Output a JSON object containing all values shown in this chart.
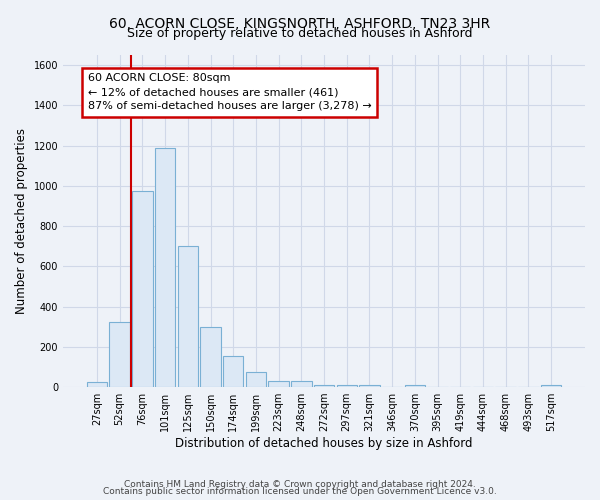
{
  "title_line1": "60, ACORN CLOSE, KINGSNORTH, ASHFORD, TN23 3HR",
  "title_line2": "Size of property relative to detached houses in Ashford",
  "xlabel": "Distribution of detached houses by size in Ashford",
  "ylabel": "Number of detached properties",
  "bar_labels": [
    "27sqm",
    "52sqm",
    "76sqm",
    "101sqm",
    "125sqm",
    "150sqm",
    "174sqm",
    "199sqm",
    "223sqm",
    "248sqm",
    "272sqm",
    "297sqm",
    "321sqm",
    "346sqm",
    "370sqm",
    "395sqm",
    "419sqm",
    "444sqm",
    "468sqm",
    "493sqm",
    "517sqm"
  ],
  "bar_values": [
    25,
    325,
    975,
    1190,
    700,
    300,
    155,
    75,
    30,
    30,
    10,
    10,
    10,
    0,
    10,
    0,
    0,
    0,
    0,
    0,
    10
  ],
  "bar_color": "#dce8f5",
  "bar_edgecolor": "#7ab0d4",
  "ylim": [
    0,
    1650
  ],
  "yticks": [
    0,
    200,
    400,
    600,
    800,
    1000,
    1200,
    1400,
    1600
  ],
  "subject_bar_index": 2,
  "vline_color": "#cc0000",
  "annotation_text": "60 ACORN CLOSE: 80sqm\n← 12% of detached houses are smaller (461)\n87% of semi-detached houses are larger (3,278) →",
  "annotation_box_color": "#cc0000",
  "annotation_bg": "#ffffff",
  "footer_line1": "Contains HM Land Registry data © Crown copyright and database right 2024.",
  "footer_line2": "Contains public sector information licensed under the Open Government Licence v3.0.",
  "background_color": "#eef2f8",
  "grid_color": "#d0d8e8",
  "title_fontsize": 10,
  "subtitle_fontsize": 9,
  "axis_label_fontsize": 8.5,
  "tick_fontsize": 7,
  "annotation_fontsize": 8,
  "footer_fontsize": 6.5
}
